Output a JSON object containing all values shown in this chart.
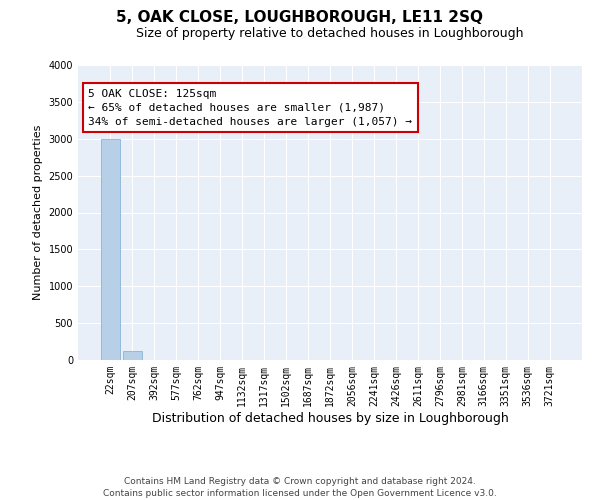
{
  "title": "5, OAK CLOSE, LOUGHBOROUGH, LE11 2SQ",
  "subtitle": "Size of property relative to detached houses in Loughborough",
  "xlabel": "Distribution of detached houses by size in Loughborough",
  "ylabel": "Number of detached properties",
  "categories": [
    "22sqm",
    "207sqm",
    "392sqm",
    "577sqm",
    "762sqm",
    "947sqm",
    "1132sqm",
    "1317sqm",
    "1502sqm",
    "1687sqm",
    "1872sqm",
    "2056sqm",
    "2241sqm",
    "2426sqm",
    "2611sqm",
    "2796sqm",
    "2981sqm",
    "3166sqm",
    "3351sqm",
    "3536sqm",
    "3721sqm"
  ],
  "values": [
    3000,
    120,
    0,
    0,
    0,
    0,
    0,
    0,
    0,
    0,
    0,
    0,
    0,
    0,
    0,
    0,
    0,
    0,
    0,
    0,
    0
  ],
  "bar_color": "#b8cfe8",
  "bar_edge_color": "#7bacd0",
  "ylim": [
    0,
    4000
  ],
  "yticks": [
    0,
    500,
    1000,
    1500,
    2000,
    2500,
    3000,
    3500,
    4000
  ],
  "background_color": "#e8eff8",
  "grid_color": "#ffffff",
  "annotation_text": "5 OAK CLOSE: 125sqm\n← 65% of detached houses are smaller (1,987)\n34% of semi-detached houses are larger (1,057) →",
  "annotation_box_facecolor": "#ffffff",
  "annotation_border_color": "#cc0000",
  "footer_line1": "Contains HM Land Registry data © Crown copyright and database right 2024.",
  "footer_line2": "Contains public sector information licensed under the Open Government Licence v3.0.",
  "title_fontsize": 11,
  "subtitle_fontsize": 9,
  "xlabel_fontsize": 9,
  "ylabel_fontsize": 8,
  "tick_fontsize": 7,
  "annotation_fontsize": 8,
  "footer_fontsize": 6.5,
  "fig_width": 6.0,
  "fig_height": 5.0,
  "fig_dpi": 100
}
